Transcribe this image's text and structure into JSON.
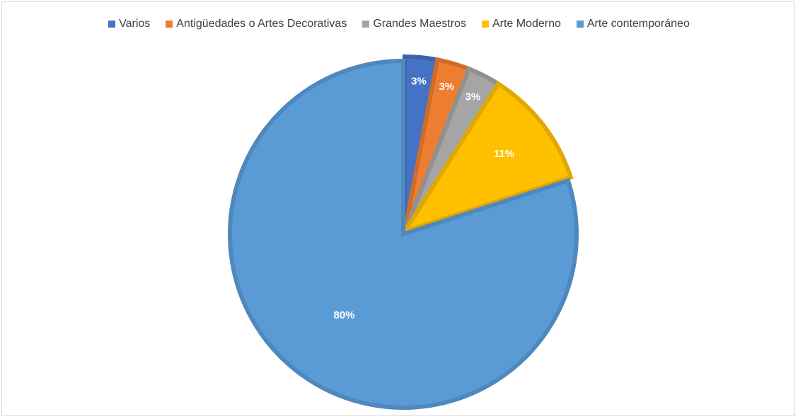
{
  "chart_data": {
    "type": "pie",
    "title": "",
    "legend_position": "top",
    "categories": [
      "Varios",
      "Antigüedades o Artes Decorativas",
      "Grandes Maestros",
      "Arte Moderno",
      "Arte contemporáneo"
    ],
    "values": [
      3,
      3,
      3,
      11,
      80
    ],
    "data_labels": [
      "3%",
      "3%",
      "3%",
      "11%",
      "80%"
    ],
    "colors": [
      "#4472c4",
      "#ed7d31",
      "#a5a5a5",
      "#ffc000",
      "#5b9bd5"
    ],
    "border_colors": [
      "#3a63ad",
      "#d06c28",
      "#909090",
      "#e0a800",
      "#4e88bd"
    ],
    "start_angle_deg": 0,
    "direction": "clockwise",
    "exploded": true
  }
}
